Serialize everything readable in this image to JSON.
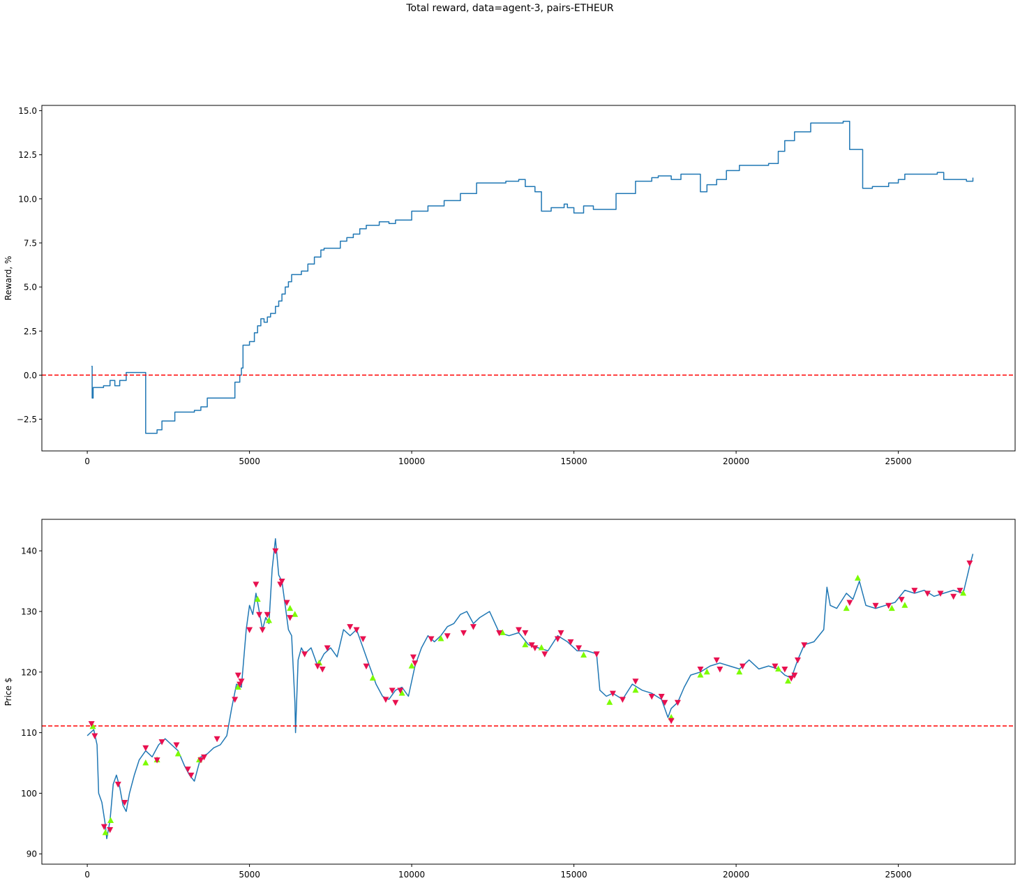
{
  "suptitle": "Total reward, data=agent-3, pairs-ETHEUR",
  "colors": {
    "line": "#1f77b4",
    "baseline": "#ff0000",
    "buy_marker": "#7cfc00",
    "sell_marker": "#e8104f"
  },
  "chart_data": [
    {
      "type": "line",
      "title": "",
      "xlabel": "",
      "ylabel": "Reward, %",
      "xlim": [
        -1400,
        28600
      ],
      "ylim": [
        -4.3,
        15.3
      ],
      "xticks": [
        0,
        5000,
        10000,
        15000,
        20000,
        25000
      ],
      "xtick_labels": [
        "0",
        "5000",
        "10000",
        "15000",
        "20000",
        "25000"
      ],
      "yticks": [
        -2.5,
        0.0,
        2.5,
        5.0,
        7.5,
        10.0,
        12.5,
        15.0
      ],
      "ytick_labels": [
        "−2.5",
        "0.0",
        "2.5",
        "5.0",
        "7.5",
        "10.0",
        "12.5",
        "15.0"
      ],
      "baseline": 0.0,
      "series": [
        {
          "style": "step",
          "x": [
            130,
            150,
            180,
            220,
            500,
            700,
            850,
            1000,
            1200,
            1800,
            2050,
            2150,
            2300,
            2700,
            3300,
            3500,
            3700,
            4200,
            4550,
            4700,
            4750,
            4800,
            5000,
            5150,
            5250,
            5350,
            5450,
            5550,
            5650,
            5800,
            5900,
            6000,
            6100,
            6200,
            6300,
            6400,
            6600,
            6800,
            7000,
            7200,
            7300,
            7500,
            7800,
            8000,
            8200,
            8400,
            8600,
            9000,
            9300,
            9500,
            9700,
            10000,
            10500,
            11000,
            11500,
            12000,
            12700,
            12900,
            13300,
            13500,
            13800,
            14000,
            14300,
            14700,
            14800,
            15000,
            15300,
            15600,
            15900,
            16300,
            16900,
            17400,
            17600,
            18000,
            18300,
            18900,
            19100,
            19400,
            19700,
            20100,
            21000,
            21300,
            21500,
            21800,
            22300,
            22700,
            23300,
            23500,
            23900,
            24200,
            24700,
            25000,
            25200,
            25600,
            26200,
            26400,
            26800,
            27100,
            27300
          ],
          "y": [
            0.5,
            -1.3,
            -0.7,
            -0.7,
            -0.6,
            -0.3,
            -0.6,
            -0.3,
            0.15,
            -3.3,
            -3.3,
            -3.1,
            -2.6,
            -2.1,
            -2.0,
            -1.8,
            -1.3,
            -1.3,
            -0.4,
            0.0,
            0.4,
            1.7,
            1.9,
            2.4,
            2.8,
            3.2,
            3.0,
            3.3,
            3.5,
            3.9,
            4.2,
            4.6,
            5.0,
            5.3,
            5.7,
            5.7,
            5.9,
            6.3,
            6.7,
            7.1,
            7.2,
            7.2,
            7.6,
            7.8,
            8.0,
            8.3,
            8.5,
            8.7,
            8.6,
            8.8,
            8.8,
            9.3,
            9.6,
            9.9,
            10.3,
            10.9,
            10.9,
            11.0,
            11.1,
            10.7,
            10.4,
            9.3,
            9.5,
            9.7,
            9.5,
            9.2,
            9.6,
            9.4,
            9.4,
            10.3,
            11.0,
            11.2,
            11.3,
            11.1,
            11.4,
            10.4,
            10.8,
            11.1,
            11.6,
            11.9,
            12.0,
            12.7,
            13.3,
            13.8,
            14.3,
            14.3,
            14.4,
            12.8,
            10.6,
            10.7,
            10.9,
            11.1,
            11.4,
            11.4,
            11.5,
            11.1,
            11.1,
            11.0,
            11.2
          ]
        }
      ]
    },
    {
      "type": "line",
      "title": "",
      "xlabel": "",
      "ylabel": "Price $",
      "xlim": [
        -1400,
        28600
      ],
      "ylim": [
        88.3,
        145.2
      ],
      "xticks": [
        0,
        5000,
        10000,
        15000,
        20000,
        25000
      ],
      "xtick_labels": [
        "0",
        "5000",
        "10000",
        "15000",
        "20000",
        "25000"
      ],
      "yticks": [
        90,
        100,
        110,
        120,
        130,
        140
      ],
      "ytick_labels": [
        "90",
        "100",
        "110",
        "120",
        "130",
        "140"
      ],
      "baseline": 111.1,
      "series": [
        {
          "style": "line",
          "x": [
            0,
            200,
            300,
            350,
            450,
            550,
            600,
            700,
            800,
            900,
            1000,
            1100,
            1200,
            1300,
            1450,
            1600,
            1800,
            2000,
            2200,
            2400,
            2600,
            2800,
            3000,
            3150,
            3300,
            3500,
            3700,
            3900,
            4100,
            4300,
            4450,
            4600,
            4750,
            4900,
            5000,
            5100,
            5200,
            5300,
            5400,
            5500,
            5600,
            5700,
            5800,
            5900,
            6000,
            6100,
            6200,
            6300,
            6400,
            6420,
            6500,
            6600,
            6700,
            6900,
            7100,
            7300,
            7500,
            7700,
            7900,
            8100,
            8300,
            8500,
            8700,
            8900,
            9100,
            9300,
            9500,
            9700,
            9900,
            10100,
            10300,
            10500,
            10700,
            10900,
            11100,
            11300,
            11500,
            11700,
            11900,
            12100,
            12400,
            12700,
            13000,
            13300,
            13600,
            13900,
            14200,
            14500,
            14800,
            15100,
            15400,
            15700,
            15800,
            16000,
            16200,
            16500,
            16800,
            17100,
            17400,
            17700,
            17900,
            18000,
            18200,
            18400,
            18600,
            18900,
            19200,
            19500,
            19800,
            20100,
            20400,
            20700,
            21000,
            21300,
            21500,
            21700,
            21900,
            22100,
            22400,
            22700,
            22800,
            22900,
            23100,
            23400,
            23600,
            23800,
            24000,
            24300,
            24600,
            24900,
            25200,
            25500,
            25800,
            26100,
            26400,
            26700,
            27000,
            27200,
            27300
          ],
          "y": [
            109.5,
            110.5,
            108.0,
            100.0,
            98.5,
            95.0,
            92.5,
            95.5,
            101.5,
            103.0,
            101.0,
            98.0,
            97.0,
            100.0,
            103.0,
            105.5,
            107.0,
            106.0,
            108.0,
            109.0,
            108.0,
            107.0,
            104.5,
            103.0,
            102.0,
            106.0,
            106.5,
            107.5,
            108.0,
            109.5,
            114.0,
            118.0,
            117.5,
            127.0,
            131.0,
            129.5,
            133.0,
            130.0,
            127.0,
            129.0,
            128.0,
            137.0,
            142.0,
            136.0,
            135.0,
            131.0,
            127.0,
            126.0,
            115.0,
            110.0,
            122.0,
            124.0,
            123.0,
            124.0,
            121.0,
            123.0,
            124.0,
            122.5,
            127.0,
            126.0,
            127.0,
            124.0,
            121.0,
            118.0,
            116.0,
            115.5,
            117.0,
            117.5,
            116.0,
            121.0,
            124.0,
            126.0,
            125.0,
            126.0,
            127.5,
            128.0,
            129.5,
            130.0,
            128.0,
            129.0,
            130.0,
            126.5,
            126.0,
            126.5,
            124.5,
            124.0,
            123.5,
            126.0,
            125.0,
            123.5,
            123.5,
            123.0,
            117.0,
            116.0,
            116.5,
            115.5,
            118.0,
            117.0,
            116.5,
            115.5,
            112.5,
            114.0,
            115.0,
            117.5,
            119.5,
            120.0,
            121.0,
            121.5,
            121.0,
            120.5,
            122.0,
            120.5,
            121.0,
            120.5,
            119.5,
            119.0,
            122.0,
            124.5,
            125.0,
            127.0,
            134.0,
            131.0,
            130.5,
            133.0,
            132.0,
            135.0,
            131.0,
            130.5,
            131.0,
            131.5,
            133.5,
            133.0,
            133.5,
            132.5,
            133.0,
            133.5,
            133.0,
            137.5,
            139.5
          ]
        }
      ],
      "buy_markers": {
        "x": [
          170,
          560,
          720,
          1800,
          2150,
          2800,
          3450,
          4650,
          5250,
          5600,
          6250,
          6400,
          7150,
          8800,
          9700,
          10000,
          10900,
          12800,
          13500,
          14000,
          15300,
          16100,
          16900,
          18000,
          18900,
          19100,
          20100,
          21300,
          21600,
          23400,
          23750,
          24800,
          25200,
          27000
        ],
        "y": [
          111.0,
          93.5,
          95.5,
          105.0,
          105.5,
          106.5,
          105.5,
          117.5,
          132.0,
          128.5,
          130.5,
          129.5,
          121.5,
          119.0,
          116.5,
          121.0,
          125.5,
          126.5,
          124.5,
          124.0,
          122.8,
          115.0,
          117.0,
          112.5,
          119.5,
          120.0,
          120.0,
          120.5,
          118.5,
          130.5,
          135.5,
          130.5,
          131.0,
          133.0
        ]
      },
      "sell_markers": {
        "x": [
          130,
          230,
          520,
          700,
          950,
          1150,
          1800,
          2150,
          2300,
          2750,
          3100,
          3200,
          3500,
          3600,
          4000,
          4550,
          4650,
          4700,
          4750,
          5000,
          5200,
          5300,
          5400,
          5550,
          5800,
          5950,
          6000,
          6150,
          6250,
          6700,
          7100,
          7250,
          7400,
          8100,
          8300,
          8500,
          8600,
          9200,
          9400,
          9500,
          9650,
          10050,
          10100,
          10600,
          11100,
          11600,
          11900,
          12700,
          13300,
          13500,
          13700,
          13800,
          14100,
          14500,
          14600,
          14900,
          15150,
          15700,
          16200,
          16500,
          16900,
          17400,
          17700,
          17800,
          18000,
          18200,
          18900,
          19400,
          19500,
          20200,
          21200,
          21500,
          21700,
          21800,
          21900,
          22100,
          23500,
          24300,
          24700,
          25100,
          25500,
          25900,
          26300,
          26700,
          26900,
          27200
        ],
        "y": [
          111.5,
          109.5,
          94.5,
          94.0,
          101.5,
          98.5,
          107.5,
          105.5,
          108.5,
          108.0,
          104.0,
          103.0,
          105.5,
          106.0,
          109.0,
          115.5,
          119.5,
          118.0,
          118.5,
          127.0,
          134.5,
          129.5,
          127.0,
          129.5,
          140.0,
          134.5,
          135.0,
          131.5,
          129.0,
          123.0,
          121.0,
          120.5,
          124.0,
          127.5,
          127.0,
          125.5,
          121.0,
          115.5,
          117.0,
          115.0,
          117.0,
          122.5,
          121.5,
          125.5,
          126.0,
          126.5,
          127.5,
          126.5,
          127.0,
          126.5,
          124.5,
          124.0,
          123.0,
          125.5,
          126.5,
          125.0,
          124.0,
          123.0,
          116.5,
          115.5,
          118.5,
          116.0,
          116.0,
          115.0,
          112.0,
          115.0,
          120.5,
          122.0,
          120.5,
          121.0,
          121.0,
          120.5,
          119.0,
          119.5,
          122.0,
          124.5,
          131.5,
          131.0,
          131.0,
          132.0,
          133.5,
          133.0,
          133.0,
          132.5,
          133.5,
          138.0
        ]
      }
    }
  ]
}
